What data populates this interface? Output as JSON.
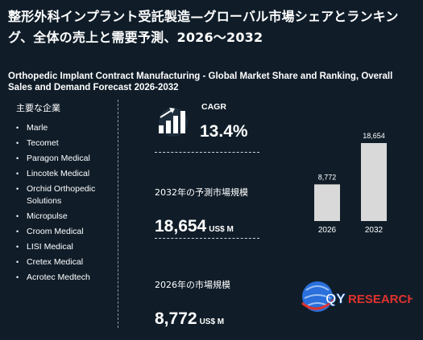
{
  "header": {
    "title_jp": "整形外科インプラント受託製造—グローバル市場シェアとランキング、全体の売上と需要予測、2026～2032",
    "title_en": "Orthopedic Implant Contract Manufacturing - Global Market Share and Ranking, Overall Sales and Demand Forecast 2026-2032"
  },
  "companies": {
    "heading": "主要な企業",
    "items": [
      "Marle",
      "Tecomet",
      "Paragon Medical",
      "Lincotek Medical",
      "Orchid Orthopedic Solutions",
      "Micropulse",
      "Croom Medical",
      "LISI Medical",
      "Cretex Medical",
      "Acrotec Medtech"
    ]
  },
  "stats": {
    "cagr_label": "CAGR",
    "cagr_value": "13.4%",
    "market_2032_label": "2032年の予測市場規模",
    "market_2032_value": "18,654",
    "market_2032_unit": "US$ M",
    "market_2026_label": "2026年の市場規模",
    "market_2026_value": "8,772",
    "market_2026_unit": "US$ M"
  },
  "chart_data": {
    "type": "bar",
    "categories": [
      "2026",
      "2032"
    ],
    "values": [
      8772,
      18654
    ],
    "value_labels": [
      "8,772",
      "18,654"
    ],
    "title": "",
    "xlabel": "",
    "ylabel": "",
    "ylim": [
      0,
      18654
    ],
    "grid": false,
    "bar_color": "#d9d9d9"
  },
  "logo": {
    "text_q": "QY",
    "text_rest": "RESEARCH",
    "color_blue": "#2a6fdb",
    "color_red": "#e0322d"
  }
}
